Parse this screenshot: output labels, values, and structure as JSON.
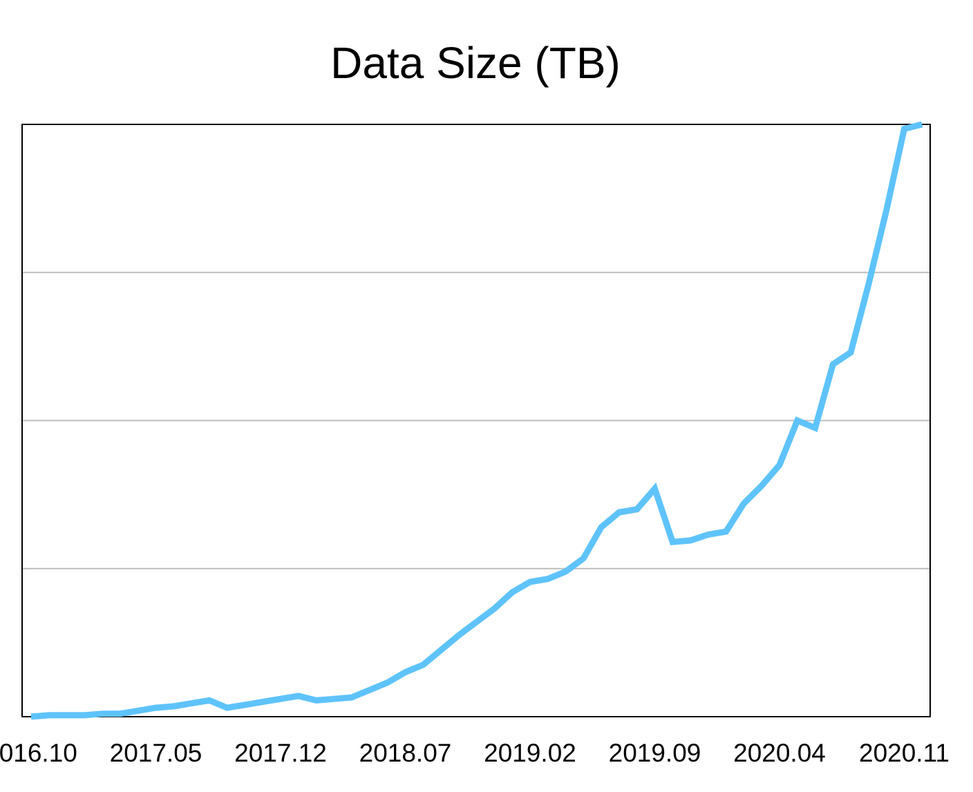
{
  "chart_data": {
    "type": "line",
    "title": "Data Size (TB)",
    "xlabel": "",
    "ylabel": "",
    "x_tick_labels": [
      "2016.10",
      "2017.05",
      "2017.12",
      "2018.07",
      "2019.02",
      "2019.09",
      "2020.04",
      "2020.11"
    ],
    "ylim": [
      0,
      4
    ],
    "y_ticks": [
      0,
      1,
      2,
      3,
      4
    ],
    "y_tick_labels_visible": false,
    "grid": {
      "horizontal": true,
      "vertical": false
    },
    "legend": "none",
    "series": [
      {
        "color": "#5ec3fa",
        "x": [
          "2016.10",
          "2016.11",
          "2016.12",
          "2017.01",
          "2017.02",
          "2017.03",
          "2017.04",
          "2017.05",
          "2017.06",
          "2017.07",
          "2017.08",
          "2017.09",
          "2017.10",
          "2017.11",
          "2017.12",
          "2018.01",
          "2018.02",
          "2018.03",
          "2018.04",
          "2018.05",
          "2018.06",
          "2018.07",
          "2018.08",
          "2018.09",
          "2018.10",
          "2018.11",
          "2018.12",
          "2019.01",
          "2019.02",
          "2019.03",
          "2019.04",
          "2019.05",
          "2019.06",
          "2019.07",
          "2019.08",
          "2019.09",
          "2019.10",
          "2019.11",
          "2019.12",
          "2020.01",
          "2020.02",
          "2020.03",
          "2020.04",
          "2020.05",
          "2020.06",
          "2020.07",
          "2020.08",
          "2020.09",
          "2020.10",
          "2020.11",
          "2020.12"
        ],
        "values": [
          0.0,
          0.01,
          0.01,
          0.01,
          0.02,
          0.02,
          0.04,
          0.06,
          0.07,
          0.09,
          0.11,
          0.06,
          0.08,
          0.1,
          0.12,
          0.14,
          0.11,
          0.12,
          0.13,
          0.18,
          0.23,
          0.3,
          0.35,
          0.45,
          0.55,
          0.64,
          0.73,
          0.84,
          0.91,
          0.93,
          0.98,
          1.07,
          1.28,
          1.38,
          1.4,
          1.54,
          1.18,
          1.19,
          1.23,
          1.25,
          1.44,
          1.56,
          1.7,
          2.0,
          1.95,
          2.38,
          2.46,
          2.92,
          3.42,
          3.97,
          4.0
        ]
      }
    ]
  }
}
